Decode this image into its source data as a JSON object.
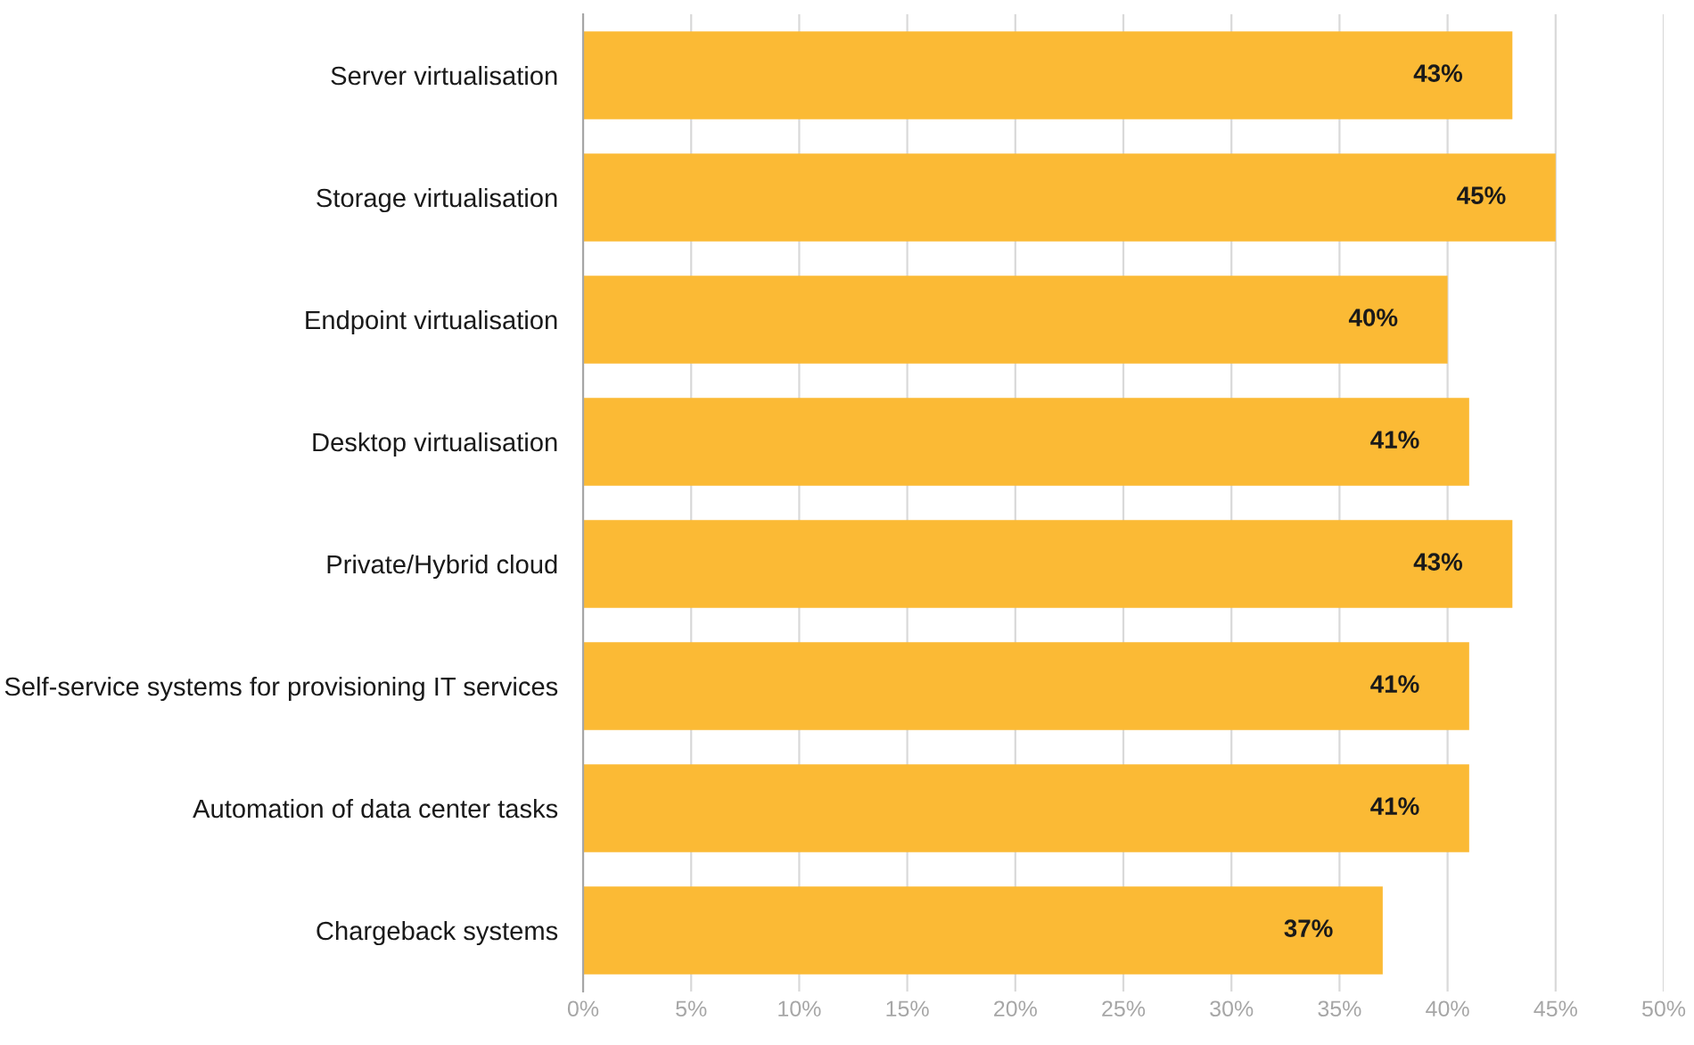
{
  "chart_data": {
    "type": "bar",
    "orientation": "horizontal",
    "categories": [
      "Server virtualisation",
      "Storage virtualisation",
      "Endpoint virtualisation",
      "Desktop virtualisation",
      "Private/Hybrid cloud",
      "Self-service systems for provisioning IT services",
      "Automation of data center tasks",
      "Chargeback systems"
    ],
    "values": [
      43,
      45,
      40,
      41,
      43,
      41,
      41,
      37
    ],
    "value_labels": [
      "43%",
      "45%",
      "40%",
      "41%",
      "43%",
      "41%",
      "41%",
      "37%"
    ],
    "color": "#fbba35",
    "xlim": [
      0,
      50
    ],
    "xticks": [
      {
        "value": 0,
        "label": "0%"
      },
      {
        "value": 5,
        "label": "5%"
      },
      {
        "value": 10,
        "label": "10%"
      },
      {
        "value": 15,
        "label": "15%"
      },
      {
        "value": 20,
        "label": "20%"
      },
      {
        "value": 25,
        "label": "25%"
      },
      {
        "value": 30,
        "label": "30%"
      },
      {
        "value": 35,
        "label": "35%"
      },
      {
        "value": 40,
        "label": "40%"
      },
      {
        "value": 45,
        "label": "45%"
      },
      {
        "value": 50,
        "label": "50%"
      }
    ],
    "grid": "x",
    "legend": false
  }
}
